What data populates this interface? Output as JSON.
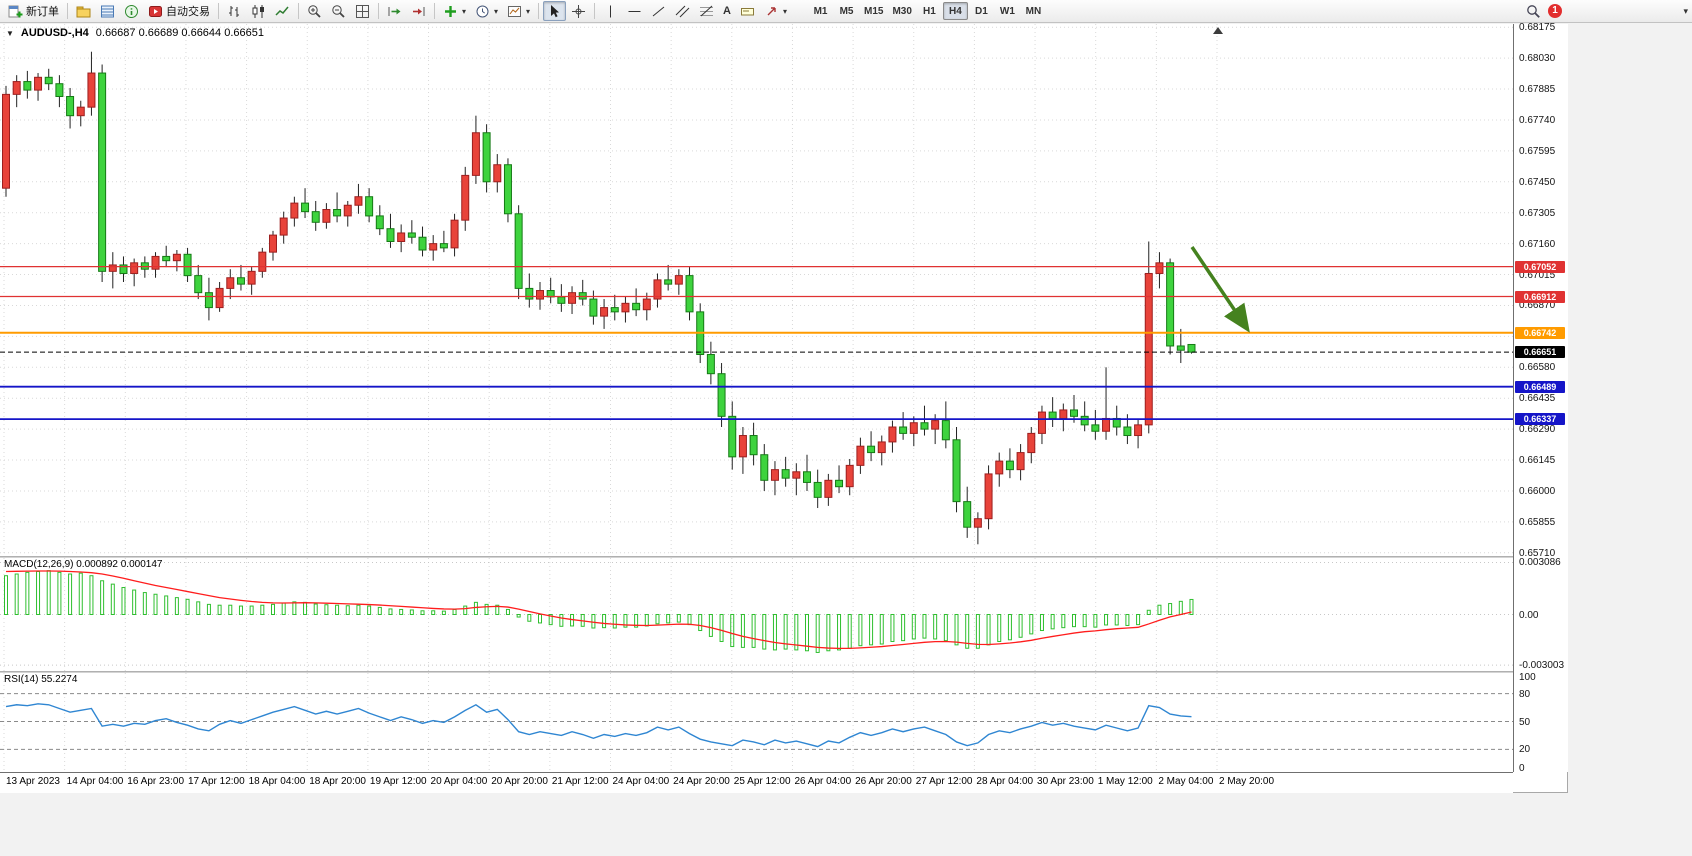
{
  "toolbar": {
    "new_order_label": "新订单",
    "autotrading_label": "自动交易",
    "timeframes": [
      "M1",
      "M5",
      "M15",
      "M30",
      "H1",
      "H4",
      "D1",
      "W1",
      "MN"
    ],
    "active_timeframe": "H4",
    "notification_badge": "1"
  },
  "chart": {
    "title": "AUDUSD-,H4",
    "ohlc": "0.66687 0.66689 0.66644 0.66651"
  },
  "chart_data": {
    "type": "candlestick",
    "symbol": "AUDUSD-",
    "timeframe": "H4",
    "price_axis": {
      "view_max": 0.6819,
      "view_min": 0.65695,
      "first": 0.6571,
      "step": 0.00145,
      "ticks": 18
    },
    "colors": {
      "bull": "#e8433a",
      "bull_border": "#9c1f1f",
      "bear": "#3ed33e",
      "bear_border": "#157a15",
      "macd_hist": "#2fbf2f",
      "macd_signal": "#ff1d1d",
      "rsi": "#2f86d2",
      "grid": "#d9d9d9",
      "level_red": "#e03232",
      "level_orange": "#ff9b00",
      "level_blue": "#1515c8",
      "current_price": "#000000"
    },
    "candles": [
      [
        0.6742,
        0.679,
        0.6738,
        0.6786
      ],
      [
        0.6786,
        0.6795,
        0.678,
        0.6792
      ],
      [
        0.6792,
        0.6797,
        0.6784,
        0.6788
      ],
      [
        0.6788,
        0.6796,
        0.6783,
        0.6794
      ],
      [
        0.6794,
        0.6798,
        0.6788,
        0.6791
      ],
      [
        0.6791,
        0.6795,
        0.678,
        0.6785
      ],
      [
        0.6785,
        0.6789,
        0.677,
        0.6776
      ],
      [
        0.6776,
        0.6783,
        0.6771,
        0.678
      ],
      [
        0.678,
        0.6806,
        0.6776,
        0.6796
      ],
      [
        0.6796,
        0.68,
        0.6698,
        0.6703
      ],
      [
        0.6703,
        0.6712,
        0.6695,
        0.6706
      ],
      [
        0.6706,
        0.671,
        0.6698,
        0.6702
      ],
      [
        0.6702,
        0.6709,
        0.6696,
        0.6707
      ],
      [
        0.6707,
        0.671,
        0.67,
        0.6704
      ],
      [
        0.6704,
        0.6712,
        0.67,
        0.671
      ],
      [
        0.671,
        0.6715,
        0.6705,
        0.6708
      ],
      [
        0.6708,
        0.6713,
        0.6703,
        0.6711
      ],
      [
        0.6711,
        0.6714,
        0.6698,
        0.6701
      ],
      [
        0.6701,
        0.6706,
        0.669,
        0.6693
      ],
      [
        0.6693,
        0.67,
        0.668,
        0.6686
      ],
      [
        0.6686,
        0.6698,
        0.6684,
        0.6695
      ],
      [
        0.6695,
        0.6704,
        0.669,
        0.67
      ],
      [
        0.67,
        0.6706,
        0.6694,
        0.6697
      ],
      [
        0.6697,
        0.6705,
        0.6692,
        0.6703
      ],
      [
        0.6703,
        0.6714,
        0.67,
        0.6712
      ],
      [
        0.6712,
        0.6722,
        0.6708,
        0.672
      ],
      [
        0.672,
        0.6731,
        0.6716,
        0.6728
      ],
      [
        0.6728,
        0.6738,
        0.6724,
        0.6735
      ],
      [
        0.6735,
        0.6742,
        0.6728,
        0.6731
      ],
      [
        0.6731,
        0.6736,
        0.6722,
        0.6726
      ],
      [
        0.6726,
        0.6735,
        0.6723,
        0.6732
      ],
      [
        0.6732,
        0.674,
        0.6726,
        0.6729
      ],
      [
        0.6729,
        0.6736,
        0.6724,
        0.6734
      ],
      [
        0.6734,
        0.6744,
        0.673,
        0.6738
      ],
      [
        0.6738,
        0.6742,
        0.6726,
        0.6729
      ],
      [
        0.6729,
        0.6734,
        0.672,
        0.6723
      ],
      [
        0.6723,
        0.673,
        0.6714,
        0.6717
      ],
      [
        0.6717,
        0.6725,
        0.6712,
        0.6721
      ],
      [
        0.6721,
        0.6727,
        0.6716,
        0.6719
      ],
      [
        0.6719,
        0.6724,
        0.671,
        0.6713
      ],
      [
        0.6713,
        0.672,
        0.6708,
        0.6716
      ],
      [
        0.6716,
        0.6722,
        0.6712,
        0.6714
      ],
      [
        0.6714,
        0.673,
        0.671,
        0.6727
      ],
      [
        0.6727,
        0.6752,
        0.6722,
        0.6748
      ],
      [
        0.6748,
        0.6776,
        0.6744,
        0.6768
      ],
      [
        0.6768,
        0.6772,
        0.674,
        0.6745
      ],
      [
        0.6745,
        0.6758,
        0.674,
        0.6753
      ],
      [
        0.6753,
        0.6756,
        0.6726,
        0.673
      ],
      [
        0.673,
        0.6734,
        0.669,
        0.6695
      ],
      [
        0.6695,
        0.6702,
        0.6686,
        0.669
      ],
      [
        0.669,
        0.6698,
        0.6685,
        0.6694
      ],
      [
        0.6694,
        0.67,
        0.6688,
        0.6691
      ],
      [
        0.6691,
        0.6697,
        0.6684,
        0.6688
      ],
      [
        0.6688,
        0.6696,
        0.6683,
        0.6693
      ],
      [
        0.6693,
        0.6699,
        0.6687,
        0.669
      ],
      [
        0.669,
        0.6694,
        0.6678,
        0.6682
      ],
      [
        0.6682,
        0.669,
        0.6676,
        0.6686
      ],
      [
        0.6686,
        0.6692,
        0.668,
        0.6684
      ],
      [
        0.6684,
        0.6691,
        0.6679,
        0.6688
      ],
      [
        0.6688,
        0.6695,
        0.6682,
        0.6685
      ],
      [
        0.6685,
        0.6693,
        0.668,
        0.669
      ],
      [
        0.669,
        0.6702,
        0.6686,
        0.6699
      ],
      [
        0.6699,
        0.6706,
        0.6694,
        0.6697
      ],
      [
        0.6697,
        0.6704,
        0.6692,
        0.6701
      ],
      [
        0.6701,
        0.6705,
        0.668,
        0.6684
      ],
      [
        0.6684,
        0.6688,
        0.666,
        0.6664
      ],
      [
        0.6664,
        0.667,
        0.665,
        0.6655
      ],
      [
        0.6655,
        0.666,
        0.663,
        0.6635
      ],
      [
        0.6635,
        0.6642,
        0.661,
        0.6616
      ],
      [
        0.6616,
        0.663,
        0.6608,
        0.6626
      ],
      [
        0.6626,
        0.6632,
        0.6612,
        0.6617
      ],
      [
        0.6617,
        0.6622,
        0.66,
        0.6605
      ],
      [
        0.6605,
        0.6614,
        0.6598,
        0.661
      ],
      [
        0.661,
        0.6616,
        0.6602,
        0.6606
      ],
      [
        0.6606,
        0.6613,
        0.6598,
        0.6609
      ],
      [
        0.6609,
        0.6617,
        0.66,
        0.6604
      ],
      [
        0.6604,
        0.661,
        0.6592,
        0.6597
      ],
      [
        0.6597,
        0.6608,
        0.6593,
        0.6605
      ],
      [
        0.6605,
        0.6612,
        0.6599,
        0.6602
      ],
      [
        0.6602,
        0.6615,
        0.6598,
        0.6612
      ],
      [
        0.6612,
        0.6625,
        0.6608,
        0.6621
      ],
      [
        0.6621,
        0.6628,
        0.6614,
        0.6618
      ],
      [
        0.6618,
        0.6626,
        0.6612,
        0.6623
      ],
      [
        0.6623,
        0.6633,
        0.6618,
        0.663
      ],
      [
        0.663,
        0.6637,
        0.6624,
        0.6627
      ],
      [
        0.6627,
        0.6635,
        0.6621,
        0.6632
      ],
      [
        0.6632,
        0.664,
        0.6626,
        0.6629
      ],
      [
        0.6629,
        0.6636,
        0.6622,
        0.6633
      ],
      [
        0.6633,
        0.6642,
        0.662,
        0.6624
      ],
      [
        0.6624,
        0.663,
        0.659,
        0.6595
      ],
      [
        0.6595,
        0.6602,
        0.6578,
        0.6583
      ],
      [
        0.6583,
        0.659,
        0.6575,
        0.6587
      ],
      [
        0.6587,
        0.6612,
        0.6582,
        0.6608
      ],
      [
        0.6608,
        0.6618,
        0.6602,
        0.6614
      ],
      [
        0.6614,
        0.662,
        0.6606,
        0.661
      ],
      [
        0.661,
        0.6622,
        0.6605,
        0.6618
      ],
      [
        0.6618,
        0.663,
        0.6613,
        0.6627
      ],
      [
        0.6627,
        0.664,
        0.6622,
        0.6637
      ],
      [
        0.6637,
        0.6644,
        0.663,
        0.6634
      ],
      [
        0.6634,
        0.6641,
        0.6628,
        0.6638
      ],
      [
        0.6638,
        0.6645,
        0.6632,
        0.6635
      ],
      [
        0.6635,
        0.6642,
        0.6628,
        0.6631
      ],
      [
        0.6631,
        0.6638,
        0.6624,
        0.6628
      ],
      [
        0.6628,
        0.6658,
        0.6624,
        0.6634
      ],
      [
        0.6634,
        0.664,
        0.6626,
        0.663
      ],
      [
        0.663,
        0.6636,
        0.6622,
        0.6626
      ],
      [
        0.6626,
        0.6634,
        0.662,
        0.6631
      ],
      [
        0.6631,
        0.6717,
        0.6627,
        0.6702
      ],
      [
        0.6702,
        0.6712,
        0.6695,
        0.6707
      ],
      [
        0.6707,
        0.6709,
        0.6664,
        0.6668
      ],
      [
        0.6668,
        0.6676,
        0.666,
        0.6666
      ],
      [
        0.66687,
        0.66689,
        0.66644,
        0.66651
      ]
    ],
    "hlines": [
      {
        "price": 0.67052,
        "label": "0.67052",
        "color": "#e03232",
        "width": 1.3
      },
      {
        "price": 0.66912,
        "label": "0.66912",
        "color": "#e03232",
        "width": 1.3
      },
      {
        "price": 0.66742,
        "label": "0.66742",
        "color": "#ff9b00",
        "width": 2
      },
      {
        "price": 0.66651,
        "label": "0.66651",
        "color": "#000000",
        "width": 1,
        "style": "dash"
      },
      {
        "price": 0.66489,
        "label": "0.66489",
        "color": "#1515c8",
        "width": 1.8
      },
      {
        "price": 0.66337,
        "label": "0.66337",
        "color": "#1515c8",
        "width": 1.8
      }
    ],
    "arrow": {
      "from": [
        1192,
        223
      ],
      "to": [
        1244,
        300
      ],
      "color": "#45821f"
    },
    "time_labels": [
      "13 Apr 2023",
      "14 Apr 04:00",
      "16 Apr 23:00",
      "17 Apr 12:00",
      "18 Apr 04:00",
      "18 Apr 20:00",
      "19 Apr 12:00",
      "20 Apr 04:00",
      "20 Apr 20:00",
      "21 Apr 12:00",
      "24 Apr 04:00",
      "24 Apr 20:00",
      "25 Apr 12:00",
      "26 Apr 04:00",
      "26 Apr 20:00",
      "27 Apr 12:00",
      "28 Apr 04:00",
      "30 Apr 23:00",
      "1 May 12:00",
      "2 May 04:00",
      "2 May 20:00"
    ],
    "macd": {
      "label": "MACD(12,26,9) 0.000892 0.000147",
      "view_max": 0.00335,
      "view_min": -0.00335,
      "grid": [
        {
          "value": 0.003086,
          "label": "0.003086"
        },
        {
          "value": 0,
          "label": "0.00"
        },
        {
          "value": -0.003003,
          "label": "-0.003003"
        }
      ],
      "hist_milli": [
        2.3,
        2.4,
        2.5,
        2.55,
        2.6,
        2.5,
        2.4,
        2.45,
        2.3,
        2.0,
        1.8,
        1.6,
        1.45,
        1.3,
        1.2,
        1.1,
        1.0,
        0.9,
        0.75,
        0.6,
        0.55,
        0.55,
        0.5,
        0.5,
        0.55,
        0.6,
        0.68,
        0.75,
        0.72,
        0.62,
        0.58,
        0.55,
        0.52,
        0.55,
        0.5,
        0.42,
        0.33,
        0.3,
        0.27,
        0.22,
        0.22,
        0.2,
        0.3,
        0.5,
        0.72,
        0.6,
        0.55,
        0.3,
        -0.15,
        -0.4,
        -0.5,
        -0.6,
        -0.7,
        -0.68,
        -0.7,
        -0.8,
        -0.78,
        -0.8,
        -0.75,
        -0.75,
        -0.68,
        -0.55,
        -0.5,
        -0.45,
        -0.6,
        -0.95,
        -1.3,
        -1.6,
        -1.9,
        -1.95,
        -1.95,
        -2.05,
        -2.1,
        -2.05,
        -2.1,
        -2.15,
        -2.25,
        -2.15,
        -2.1,
        -2.0,
        -1.85,
        -1.8,
        -1.75,
        -1.6,
        -1.55,
        -1.45,
        -1.4,
        -1.45,
        -1.55,
        -1.8,
        -2.0,
        -2.0,
        -1.8,
        -1.6,
        -1.5,
        -1.35,
        -1.15,
        -0.95,
        -0.85,
        -0.78,
        -0.72,
        -0.72,
        -0.75,
        -0.62,
        -0.62,
        -0.65,
        -0.6,
        0.25,
        0.55,
        0.65,
        0.78,
        0.892
      ],
      "signal_milli": [
        2.55,
        2.56,
        2.57,
        2.58,
        2.58,
        2.57,
        2.55,
        2.52,
        2.48,
        2.4,
        2.28,
        2.15,
        2.0,
        1.86,
        1.72,
        1.6,
        1.48,
        1.36,
        1.24,
        1.12,
        1.0,
        0.92,
        0.84,
        0.77,
        0.72,
        0.69,
        0.68,
        0.69,
        0.7,
        0.69,
        0.67,
        0.65,
        0.63,
        0.61,
        0.59,
        0.56,
        0.52,
        0.48,
        0.44,
        0.4,
        0.36,
        0.33,
        0.32,
        0.35,
        0.42,
        0.46,
        0.48,
        0.44,
        0.32,
        0.18,
        0.04,
        -0.09,
        -0.21,
        -0.3,
        -0.38,
        -0.46,
        -0.53,
        -0.58,
        -0.62,
        -0.64,
        -0.65,
        -0.63,
        -0.6,
        -0.57,
        -0.58,
        -0.65,
        -0.78,
        -0.94,
        -1.13,
        -1.3,
        -1.43,
        -1.55,
        -1.66,
        -1.74,
        -1.81,
        -1.88,
        -1.95,
        -1.99,
        -2.01,
        -2.01,
        -1.98,
        -1.94,
        -1.9,
        -1.84,
        -1.78,
        -1.71,
        -1.65,
        -1.61,
        -1.6,
        -1.64,
        -1.71,
        -1.77,
        -1.78,
        -1.74,
        -1.69,
        -1.62,
        -1.53,
        -1.41,
        -1.3,
        -1.2,
        -1.1,
        -1.02,
        -0.97,
        -0.9,
        -0.84,
        -0.8,
        -0.76,
        -0.56,
        -0.34,
        -0.14,
        0.0,
        0.147
      ]
    },
    "rsi": {
      "label": "RSI(14) 55.2274",
      "levels": [
        80,
        50,
        20
      ],
      "axis": [
        100,
        80,
        50,
        20,
        0
      ],
      "values": [
        66,
        68,
        67,
        69,
        68,
        64,
        60,
        62,
        64,
        45,
        47,
        45,
        48,
        47,
        51,
        53,
        49,
        46,
        42,
        40,
        47,
        51,
        48,
        52,
        56,
        60,
        63,
        66,
        62,
        58,
        61,
        58,
        61,
        64,
        59,
        55,
        51,
        55,
        52,
        48,
        51,
        49,
        55,
        62,
        68,
        60,
        63,
        52,
        39,
        36,
        39,
        37,
        35,
        39,
        36,
        32,
        36,
        34,
        37,
        35,
        38,
        44,
        41,
        44,
        37,
        31,
        28,
        26,
        24,
        30,
        28,
        25,
        30,
        27,
        29,
        26,
        23,
        29,
        27,
        33,
        38,
        35,
        38,
        42,
        39,
        42,
        44,
        40,
        36,
        28,
        24,
        27,
        36,
        40,
        38,
        42,
        45,
        49,
        46,
        48,
        45,
        43,
        41,
        46,
        43,
        40,
        43,
        67,
        65,
        58,
        56,
        55.23
      ]
    }
  }
}
